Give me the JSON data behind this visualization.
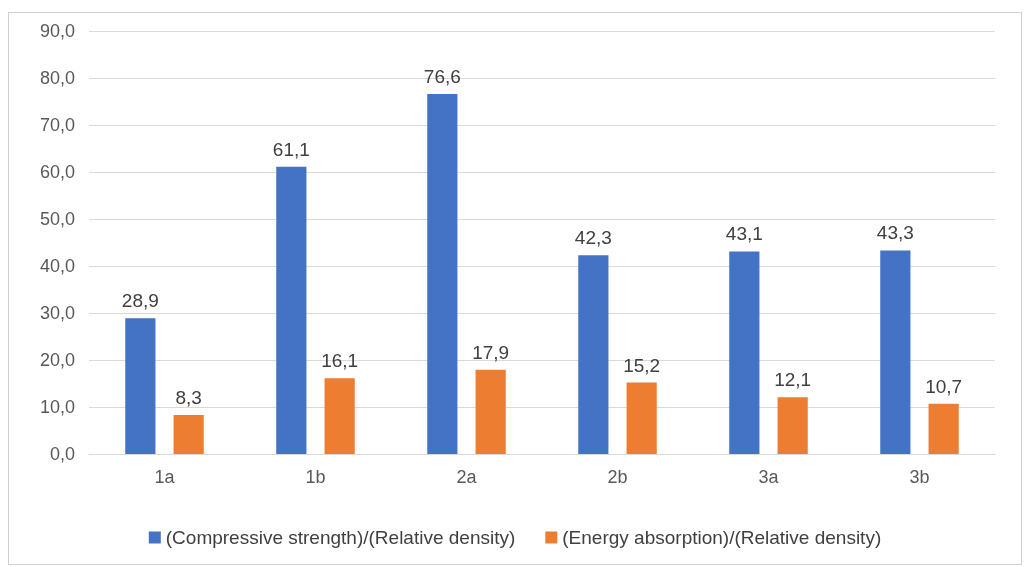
{
  "chart_data": {
    "type": "bar",
    "categories": [
      "1a",
      "1b",
      "2a",
      "2b",
      "3a",
      "3b"
    ],
    "series": [
      {
        "name": "(Compressive strength)/(Relative density)",
        "color": "#4472c4",
        "values": [
          28.9,
          61.1,
          76.6,
          42.3,
          43.1,
          43.3
        ],
        "value_labels": [
          "28,9",
          "61,1",
          "76,6",
          "42,3",
          "43,1",
          "43,3"
        ]
      },
      {
        "name": "(Energy absorption)/(Relative density)",
        "color": "#ed7d31",
        "values": [
          8.3,
          16.1,
          17.9,
          15.2,
          12.1,
          10.7
        ],
        "value_labels": [
          "8,3",
          "16,1",
          "17,9",
          "15,2",
          "12,1",
          "10,7"
        ]
      }
    ],
    "ylim": [
      0,
      90
    ],
    "yticks": [
      {
        "value": 0,
        "label": "0,0"
      },
      {
        "value": 10,
        "label": "10,0"
      },
      {
        "value": 20,
        "label": "20,0"
      },
      {
        "value": 30,
        "label": "30,0"
      },
      {
        "value": 40,
        "label": "40,0"
      },
      {
        "value": 50,
        "label": "50,0"
      },
      {
        "value": 60,
        "label": "60,0"
      },
      {
        "value": 70,
        "label": "70,0"
      },
      {
        "value": 80,
        "label": "80,0"
      },
      {
        "value": 90,
        "label": "90,0"
      }
    ],
    "grid": "y",
    "legend": "bottom"
  }
}
